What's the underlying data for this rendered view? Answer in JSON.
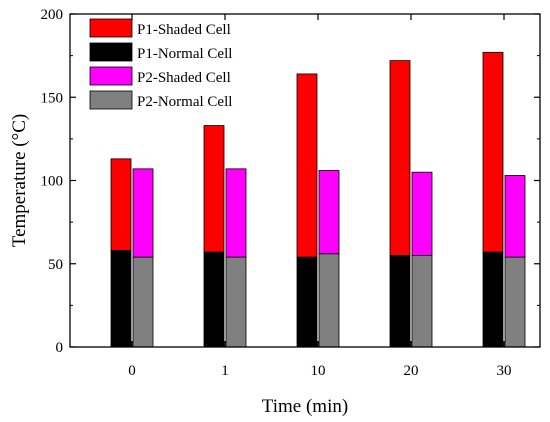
{
  "chart_data": {
    "type": "bar",
    "title": "",
    "xlabel": "Time (min)",
    "ylabel": "Temperature (°C)",
    "categories": [
      "0",
      "1",
      "10",
      "20",
      "30"
    ],
    "ylim": [
      0,
      200
    ],
    "yticks": [
      "0",
      "50",
      "100",
      "150",
      "200"
    ],
    "grid": false,
    "legend_position": "top-left",
    "stacks": [
      {
        "name": "P1",
        "series": [
          {
            "name": "P1-Normal Cell",
            "color": "#000000",
            "values": [
              58,
              57,
              54,
              55,
              57
            ]
          },
          {
            "name": "P1-Shaded Cell",
            "color": "#ff0000",
            "values": [
              55,
              76,
              110,
              117,
              120
            ]
          }
        ]
      },
      {
        "name": "P2",
        "series": [
          {
            "name": "P2-Normal Cell",
            "color": "#808080",
            "values": [
              54,
              54,
              56,
              55,
              54
            ]
          },
          {
            "name": "P2-Shaded Cell",
            "color": "#ff00ff",
            "values": [
              53,
              53,
              50,
              50,
              49
            ]
          }
        ]
      }
    ],
    "legend": [
      {
        "label": "P1-Shaded Cell",
        "color": "#ff0000"
      },
      {
        "label": "P1-Normal Cell",
        "color": "#000000"
      },
      {
        "label": "P2-Shaded Cell",
        "color": "#ff00ff"
      },
      {
        "label": "P2-Normal Cell",
        "color": "#808080"
      }
    ]
  }
}
